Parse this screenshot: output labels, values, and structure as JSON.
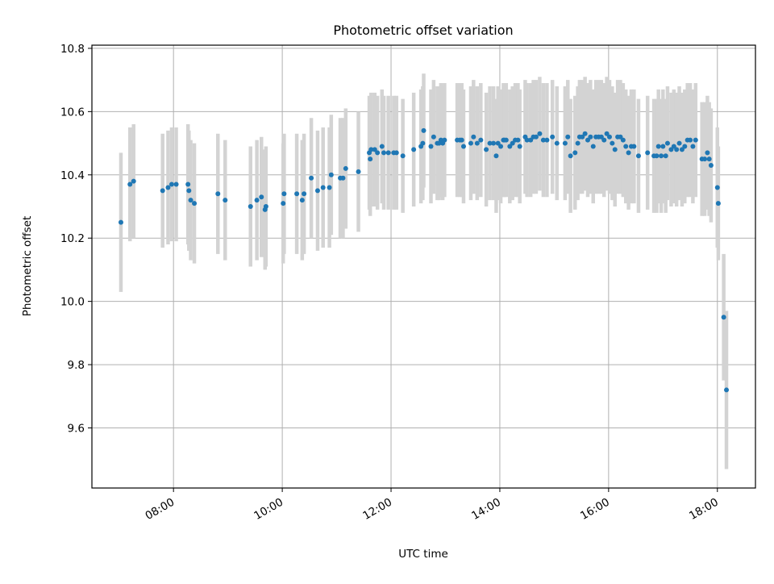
{
  "chart_data": {
    "type": "scatter",
    "title": "Photometric offset variation",
    "xlabel": "UTC time",
    "ylabel": "Photometric offset",
    "x_ticks": [
      "08:00",
      "10:00",
      "12:00",
      "14:00",
      "16:00",
      "18:00"
    ],
    "y_ticks": [
      "9.6",
      "9.8",
      "10.0",
      "10.2",
      "10.4",
      "10.6",
      "10.8"
    ],
    "xlim": [
      "06:30",
      "18:42"
    ],
    "ylim": [
      9.41,
      10.81
    ],
    "grid": true,
    "colors": {
      "points": "#1f77b4",
      "errorbars": "#d3d3d3",
      "grid": "#b0b0b0"
    },
    "series": [
      {
        "x": [
          "07:02",
          "07:12",
          "07:16",
          "07:48",
          "07:54",
          "07:58",
          "08:03",
          "08:16",
          "08:17",
          "08:19",
          "08:23",
          "08:49",
          "08:57",
          "09:25",
          "09:32",
          "09:37",
          "09:41",
          "09:42",
          "10:01",
          "10:02",
          "10:16",
          "10:22",
          "10:24",
          "10:32",
          "10:39",
          "10:45",
          "10:52",
          "10:54",
          "11:04",
          "11:07",
          "11:10",
          "11:24",
          "11:36",
          "11:37",
          "11:38",
          "11:42",
          "11:45",
          "11:50",
          "11:52",
          "11:57",
          "12:03",
          "12:06",
          "12:13",
          "12:25",
          "12:33",
          "12:35",
          "12:36",
          "12:44",
          "12:47",
          "12:51",
          "12:53",
          "12:55",
          "12:57",
          "12:59",
          "13:13",
          "13:16",
          "13:18",
          "13:20",
          "13:28",
          "13:31",
          "13:35",
          "13:39",
          "13:45",
          "13:49",
          "13:53",
          "13:56",
          "13:58",
          "14:01",
          "14:04",
          "14:05",
          "14:07",
          "14:11",
          "14:14",
          "14:17",
          "14:20",
          "14:22",
          "14:28",
          "14:30",
          "14:34",
          "14:37",
          "14:40",
          "14:44",
          "14:48",
          "14:52",
          "14:58",
          "15:03",
          "15:12",
          "15:15",
          "15:18",
          "15:23",
          "15:26",
          "15:28",
          "15:31",
          "15:34",
          "15:37",
          "15:40",
          "15:43",
          "15:46",
          "15:49",
          "15:52",
          "15:55",
          "15:58",
          "16:01",
          "16:04",
          "16:07",
          "16:10",
          "16:13",
          "16:16",
          "16:19",
          "16:22",
          "16:25",
          "16:28",
          "16:33",
          "16:43",
          "16:50",
          "16:53",
          "16:55",
          "16:58",
          "17:00",
          "17:03",
          "17:05",
          "17:09",
          "17:12",
          "17:15",
          "17:18",
          "17:21",
          "17:24",
          "17:27",
          "17:30",
          "17:33",
          "17:36",
          "17:43",
          "17:46",
          "17:49",
          "17:51",
          "17:53",
          "18:00",
          "18:01",
          "18:07",
          "18:10"
        ],
        "y": [
          10.25,
          10.37,
          10.38,
          10.35,
          10.36,
          10.37,
          10.37,
          10.37,
          10.35,
          10.32,
          10.31,
          10.34,
          10.32,
          10.3,
          10.32,
          10.33,
          10.29,
          10.3,
          10.31,
          10.34,
          10.34,
          10.32,
          10.34,
          10.39,
          10.35,
          10.36,
          10.36,
          10.4,
          10.39,
          10.39,
          10.42,
          10.41,
          10.47,
          10.45,
          10.48,
          10.48,
          10.47,
          10.49,
          10.47,
          10.47,
          10.47,
          10.47,
          10.46,
          10.48,
          10.49,
          10.5,
          10.54,
          10.49,
          10.52,
          10.5,
          10.5,
          10.51,
          10.5,
          10.51,
          10.51,
          10.51,
          10.51,
          10.49,
          10.5,
          10.52,
          10.5,
          10.51,
          10.48,
          10.5,
          10.5,
          10.46,
          10.5,
          10.49,
          10.51,
          10.51,
          10.51,
          10.49,
          10.5,
          10.51,
          10.51,
          10.49,
          10.52,
          10.51,
          10.51,
          10.52,
          10.52,
          10.53,
          10.51,
          10.51,
          10.52,
          10.5,
          10.5,
          10.52,
          10.46,
          10.47,
          10.5,
          10.52,
          10.52,
          10.53,
          10.51,
          10.52,
          10.49,
          10.52,
          10.52,
          10.52,
          10.51,
          10.53,
          10.52,
          10.5,
          10.48,
          10.52,
          10.52,
          10.51,
          10.49,
          10.47,
          10.49,
          10.49,
          10.46,
          10.47,
          10.46,
          10.46,
          10.49,
          10.46,
          10.49,
          10.46,
          10.5,
          10.48,
          10.49,
          10.48,
          10.5,
          10.48,
          10.49,
          10.51,
          10.51,
          10.49,
          10.51,
          10.45,
          10.45,
          10.47,
          10.45,
          10.43,
          10.36,
          10.31,
          9.95,
          9.72
        ],
        "err": [
          0.22,
          0.18,
          0.18,
          0.18,
          0.18,
          0.18,
          0.18,
          0.19,
          0.19,
          0.19,
          0.19,
          0.19,
          0.19,
          0.19,
          0.19,
          0.19,
          0.19,
          0.19,
          0.19,
          0.19,
          0.19,
          0.19,
          0.19,
          0.19,
          0.19,
          0.19,
          0.19,
          0.19,
          0.19,
          0.19,
          0.19,
          0.19,
          0.18,
          0.18,
          0.18,
          0.18,
          0.18,
          0.18,
          0.18,
          0.18,
          0.18,
          0.18,
          0.18,
          0.18,
          0.18,
          0.18,
          0.18,
          0.18,
          0.18,
          0.18,
          0.18,
          0.18,
          0.18,
          0.18,
          0.18,
          0.18,
          0.18,
          0.18,
          0.18,
          0.18,
          0.18,
          0.18,
          0.18,
          0.18,
          0.18,
          0.18,
          0.18,
          0.18,
          0.18,
          0.18,
          0.18,
          0.18,
          0.18,
          0.18,
          0.18,
          0.18,
          0.18,
          0.18,
          0.18,
          0.18,
          0.18,
          0.18,
          0.18,
          0.18,
          0.18,
          0.18,
          0.18,
          0.18,
          0.18,
          0.18,
          0.18,
          0.18,
          0.18,
          0.18,
          0.18,
          0.18,
          0.18,
          0.18,
          0.18,
          0.18,
          0.18,
          0.18,
          0.18,
          0.18,
          0.18,
          0.18,
          0.18,
          0.18,
          0.18,
          0.18,
          0.18,
          0.18,
          0.18,
          0.18,
          0.18,
          0.18,
          0.18,
          0.18,
          0.18,
          0.18,
          0.18,
          0.18,
          0.18,
          0.18,
          0.18,
          0.18,
          0.18,
          0.18,
          0.18,
          0.18,
          0.18,
          0.18,
          0.18,
          0.18,
          0.18,
          0.18,
          0.19,
          0.18,
          0.2,
          0.25
        ]
      }
    ]
  }
}
